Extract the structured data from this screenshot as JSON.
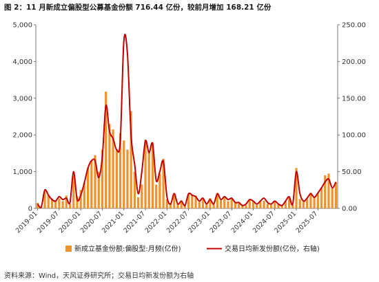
{
  "title": "图 2：11 月新成立偏股型公募基金份额 716.44 亿份，较前月增加 168.21 亿份",
  "source": "资料来源：Wind，天风证券研究所；交易日均新发份额为右轴",
  "chart_data": {
    "type": "bar+line",
    "x_tick_labels": [
      "2019-01",
      "2019-07",
      "2020-01",
      "2020-07",
      "2021-01",
      "2021-07",
      "2022-01",
      "2022-07",
      "2023-01",
      "2023-07",
      "2024-01",
      "2024-07",
      "2025-01",
      "2025-07"
    ],
    "x_start": "2019-01",
    "left_axis": {
      "min": 0,
      "max": 5000,
      "ticks": [
        "0",
        "1,000",
        "2,000",
        "3,000",
        "4,000",
        "5,000"
      ]
    },
    "right_axis": {
      "min": 0,
      "max": 250,
      "ticks": [
        "0.00",
        "50.00",
        "100.00",
        "150.00",
        "200.00",
        "250.00"
      ]
    },
    "series": [
      {
        "name": "新成立基金份额:偏股型:月频(亿份)",
        "type": "bar",
        "axis": "left",
        "color": "#f0922b",
        "values": [
          150,
          40,
          470,
          350,
          270,
          220,
          270,
          200,
          350,
          120,
          900,
          330,
          500,
          700,
          1100,
          1300,
          1450,
          1000,
          1600,
          3180,
          2300,
          2150,
          1600,
          2050,
          1850,
          1600,
          2650,
          1000,
          300,
          650,
          1870,
          1550,
          1800,
          650,
          950,
          1350,
          250,
          150,
          420,
          120,
          220,
          80,
          400,
          360,
          350,
          180,
          280,
          100,
          280,
          120,
          420,
          220,
          300,
          200,
          280,
          150,
          160,
          100,
          90,
          250,
          200,
          100,
          180,
          210,
          130,
          100,
          180,
          110,
          100,
          200,
          320,
          100,
          1100,
          250,
          200,
          260,
          430,
          310,
          410,
          560,
          900,
          950,
          550,
          716.44
        ]
      },
      {
        "name": "交易日均新发份额(亿份，右轴)",
        "type": "line",
        "axis": "right",
        "color": "#c00000",
        "values": [
          6,
          2,
          25,
          18,
          12,
          10,
          16,
          12,
          14,
          8,
          50,
          12,
          18,
          35,
          55,
          65,
          65,
          42,
          70,
          140,
          105,
          95,
          80,
          92,
          228,
          210,
          100,
          60,
          20,
          50,
          92,
          76,
          88,
          38,
          50,
          64,
          16,
          6,
          20,
          6,
          10,
          4,
          20,
          18,
          16,
          10,
          14,
          6,
          12,
          6,
          20,
          12,
          16,
          12,
          14,
          8,
          8,
          4,
          6,
          12,
          10,
          6,
          10,
          14,
          8,
          6,
          10,
          6,
          4,
          10,
          16,
          6,
          50,
          20,
          10,
          14,
          20,
          15,
          21,
          28,
          36,
          40,
          28,
          35.82
        ]
      }
    ]
  }
}
